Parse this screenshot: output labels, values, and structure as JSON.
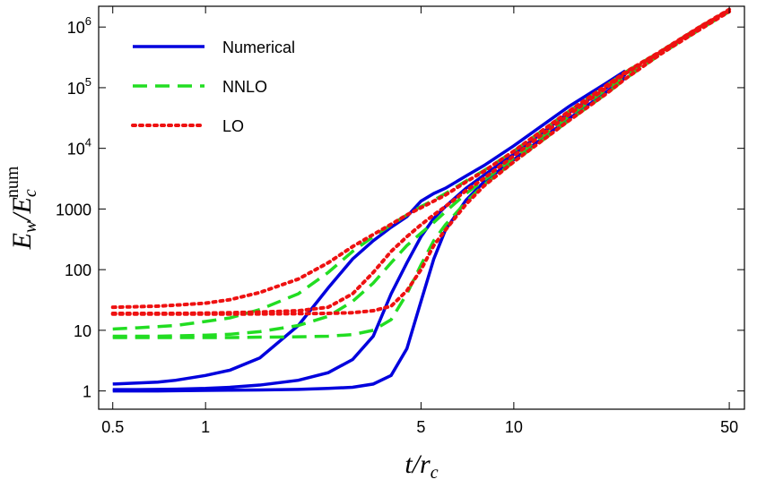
{
  "chart_data": {
    "type": "line",
    "xlabel": {
      "base": "t/r",
      "sub": "c"
    },
    "ylabel": {
      "base1": "E",
      "sub1": "w",
      "base2": "/E",
      "sub2": "c",
      "sup2": "num"
    },
    "xscale": "log",
    "yscale": "log",
    "xlim": [
      0.45,
      56
    ],
    "ylim": [
      0.5,
      2200000
    ],
    "xticks": [
      0.5,
      1,
      5,
      10,
      50
    ],
    "yticks": [
      1,
      10,
      100,
      1000,
      {
        "value": 10000,
        "label": "10",
        "exponent": "4"
      },
      {
        "value": 100000,
        "label": "10",
        "exponent": "5"
      },
      {
        "value": 1000000,
        "label": "10",
        "exponent": "6"
      }
    ],
    "grid": false,
    "legend": "upper left",
    "x": [
      0.5,
      0.6,
      0.7,
      0.8,
      1,
      1.2,
      1.5,
      2,
      2.5,
      3,
      3.5,
      4,
      4.5,
      5,
      5.5,
      6,
      7,
      8,
      10,
      15,
      20,
      23,
      30,
      40,
      50
    ],
    "series": [
      {
        "name": "Numerical",
        "color": "#0000dd",
        "dash": "solid",
        "values": [
          [
            1.3,
            1.35,
            1.4,
            1.5,
            1.8,
            2.2,
            3.5,
            12,
            50,
            150,
            300,
            500,
            750,
            1350,
            1800,
            2200,
            3500,
            5200,
            11000,
            48000,
            120000,
            190000,
            null,
            null,
            null
          ],
          [
            1.05,
            1.05,
            1.06,
            1.07,
            1.1,
            1.15,
            1.25,
            1.5,
            2,
            3.3,
            8,
            40,
            130,
            350,
            700,
            1100,
            2200,
            3600,
            8000,
            38000,
            100000,
            165000,
            null,
            null,
            null
          ],
          [
            1.0,
            1.0,
            1.0,
            1.01,
            1.02,
            1.03,
            1.04,
            1.06,
            1.1,
            1.15,
            1.3,
            1.8,
            5,
            30,
            150,
            450,
            1400,
            2800,
            6500,
            30000,
            85000,
            145000,
            null,
            null,
            null
          ]
        ]
      },
      {
        "name": "NNLO",
        "color": "#22dd22",
        "dash": "dashed",
        "values": [
          [
            10.5,
            11,
            11.5,
            12,
            14,
            16,
            22,
            40,
            90,
            200,
            350,
            550,
            800,
            1100,
            1400,
            1800,
            2900,
            4300,
            9000,
            40000,
            110000,
            180000,
            400000,
            1000000,
            1900000
          ],
          [
            8,
            8,
            8,
            8.1,
            8.3,
            8.6,
            9.5,
            12,
            17,
            30,
            60,
            130,
            250,
            400,
            600,
            900,
            1800,
            3000,
            7000,
            33000,
            95000,
            160000,
            380000,
            950000,
            1850000
          ],
          [
            7.6,
            7.6,
            7.6,
            7.6,
            7.6,
            7.6,
            7.7,
            7.8,
            8,
            8.5,
            10,
            15,
            40,
            120,
            300,
            550,
            1300,
            2500,
            6000,
            28000,
            80000,
            140000,
            360000,
            900000,
            1800000
          ]
        ]
      },
      {
        "name": "LO",
        "color": "#ee1111",
        "dash": "dotted",
        "values": [
          [
            24,
            24.5,
            25,
            26,
            28,
            32,
            42,
            70,
            130,
            240,
            380,
            560,
            800,
            1050,
            1350,
            1700,
            2800,
            4200,
            9000,
            40000,
            110000,
            180000,
            400000,
            1000000,
            1950000
          ],
          [
            19,
            19,
            19,
            19,
            19.2,
            19.5,
            20,
            21,
            24,
            40,
            90,
            200,
            350,
            550,
            800,
            1100,
            2000,
            3200,
            7500,
            35000,
            100000,
            170000,
            390000,
            980000,
            1900000
          ],
          [
            18.5,
            18.5,
            18.5,
            18.5,
            18.5,
            18.5,
            18.6,
            18.8,
            19,
            19.5,
            21,
            25,
            45,
            100,
            250,
            450,
            1200,
            2400,
            6000,
            28000,
            80000,
            140000,
            360000,
            900000,
            1800000
          ]
        ]
      }
    ]
  }
}
